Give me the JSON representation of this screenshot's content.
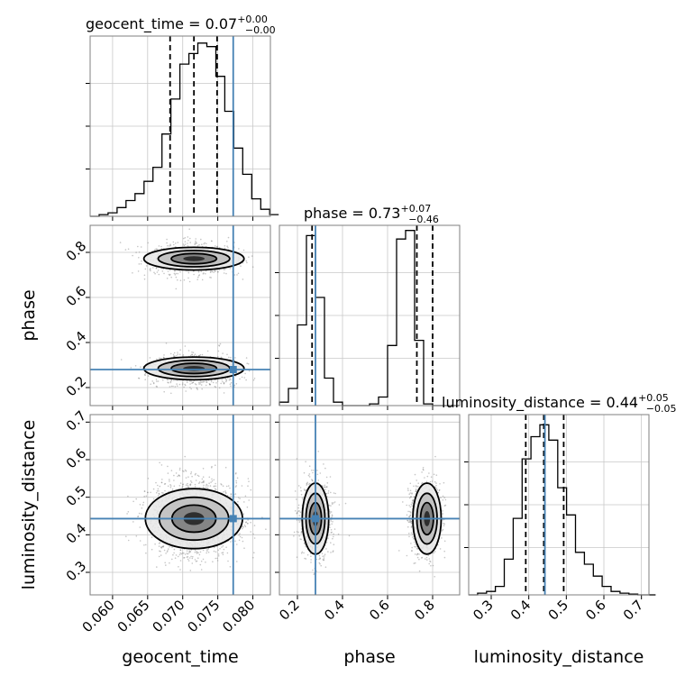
{
  "chart_data": {
    "type": "corner",
    "parameters": [
      "geocent_time",
      "phase",
      "luminosity_distance"
    ],
    "truths": [
      0.0772,
      0.28,
      0.443
    ],
    "truth_color": "#4682b4",
    "axis_ranges": [
      [
        0.0568,
        0.0825
      ],
      [
        0.12,
        0.92
      ],
      [
        0.24,
        0.72
      ]
    ],
    "ticks": [
      [
        "0.060",
        "0.065",
        "0.070",
        "0.075",
        "0.080"
      ],
      [
        "0.2",
        "0.4",
        "0.6",
        "0.8"
      ],
      [
        "0.3",
        "0.4",
        "0.5",
        "0.6",
        "0.7"
      ]
    ],
    "titles": [
      {
        "main": "geocent_time = 0.07",
        "sup": "+0.00",
        "sub": "−0.00"
      },
      {
        "main": "phase = 0.73",
        "sup": "+0.07",
        "sub": "−0.46"
      },
      {
        "main": "luminosity_distance = 0.44",
        "sup": "+0.05",
        "sub": "−0.05"
      }
    ],
    "quantiles": [
      [
        0.0682,
        0.0716,
        0.0749
      ],
      [
        0.265,
        0.73,
        0.8
      ],
      [
        0.392,
        0.44,
        0.493
      ]
    ],
    "histograms": [
      {
        "edges_start": 0.0568,
        "bin_width": 0.00128,
        "counts": [
          0,
          0.01,
          0.02,
          0.05,
          0.09,
          0.13,
          0.2,
          0.28,
          0.47,
          0.67,
          0.87,
          0.93,
          0.99,
          0.97,
          0.8,
          0.6,
          0.39,
          0.24,
          0.1,
          0.04,
          0.01
        ],
        "ylim": [
          0,
          1.03
        ]
      },
      {
        "edges_start": 0.12,
        "bin_width": 0.04,
        "counts": [
          0.02,
          0.1,
          0.47,
          0.99,
          0.63,
          0.16,
          0.02,
          0,
          0,
          0,
          0.01,
          0.05,
          0.35,
          0.97,
          1.02,
          0.38,
          0.01,
          0,
          0,
          0
        ],
        "ylim": [
          0,
          1.05
        ]
      },
      {
        "edges_start": 0.24,
        "bin_width": 0.0237,
        "counts": [
          0,
          0.01,
          0.02,
          0.05,
          0.21,
          0.45,
          0.8,
          0.93,
          1.0,
          0.91,
          0.63,
          0.47,
          0.25,
          0.18,
          0.11,
          0.05,
          0.02,
          0.01,
          0.005,
          0,
          0
        ],
        "ylim": [
          0,
          1.06
        ]
      }
    ],
    "contour_levels": 3,
    "grid": true
  }
}
